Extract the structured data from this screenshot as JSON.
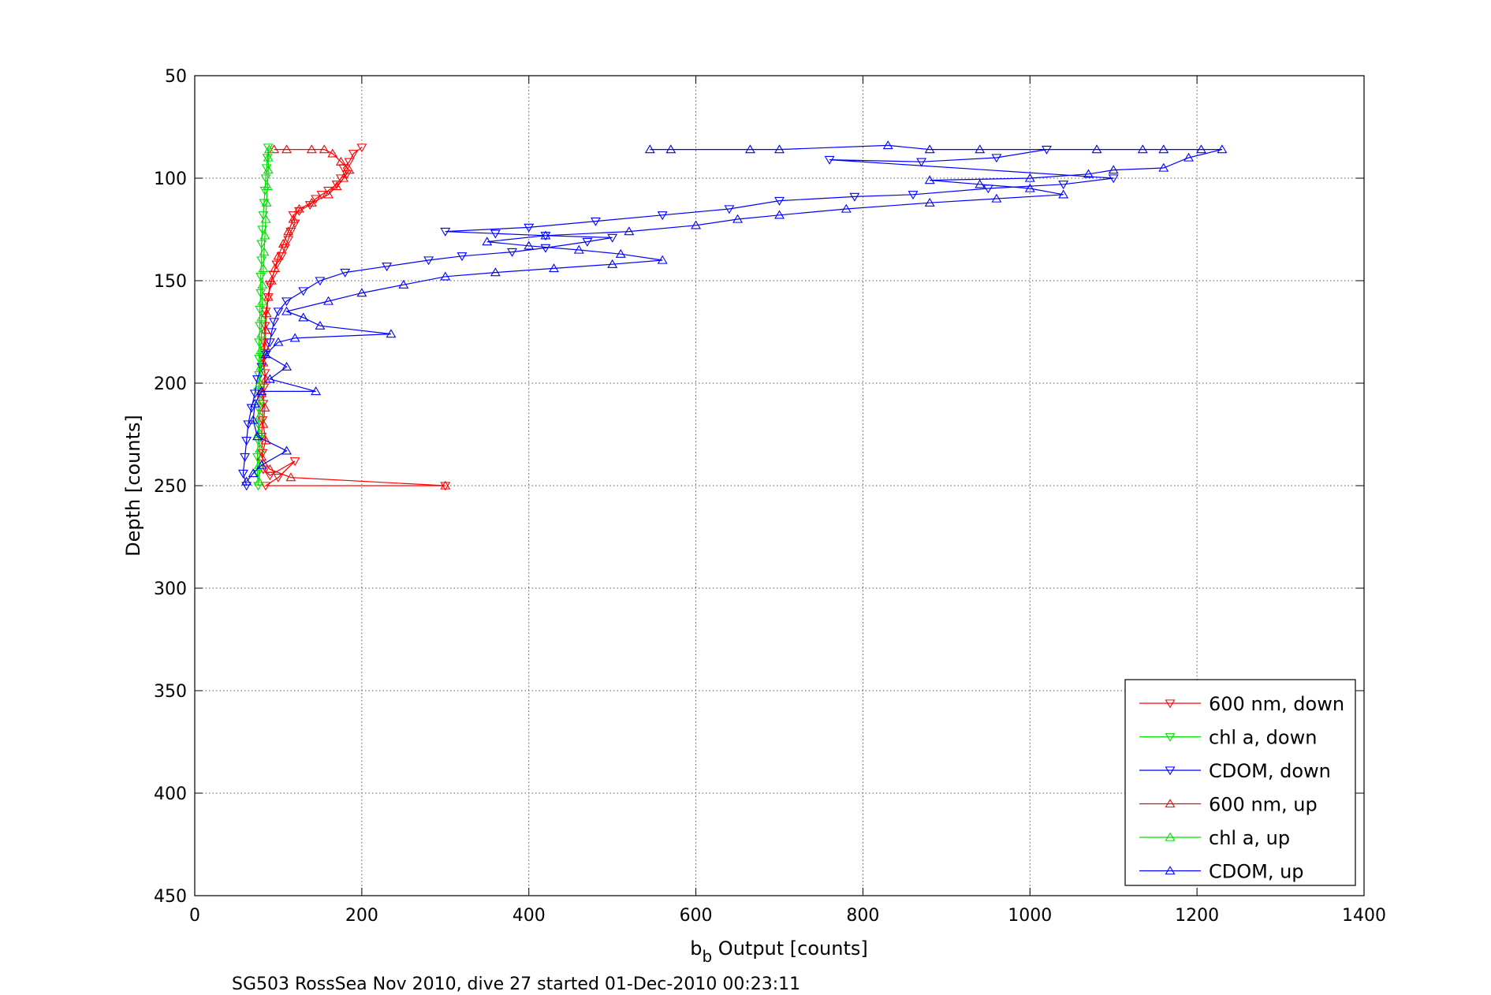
{
  "chart_data": {
    "type": "line",
    "xlabel_main": "b",
    "xlabel_sub": "b",
    "xlabel_rest": " Output [counts]",
    "ylabel": "Depth [counts]",
    "caption": "SG503 RossSea Nov 2010, dive 27 started 01-Dec-2010 00:23:11",
    "xlim": [
      0,
      1400
    ],
    "ylim": [
      50,
      450
    ],
    "y_reversed": true,
    "grid": true,
    "legend_position": "bottom-right",
    "x_ticks": [
      "0",
      "200",
      "400",
      "600",
      "800",
      "1000",
      "1200",
      "1400"
    ],
    "y_ticks": [
      "50",
      "100",
      "150",
      "200",
      "250",
      "300",
      "350",
      "400",
      "450"
    ],
    "series": [
      {
        "name": "600 nm, down",
        "color": "#ff0000",
        "marker": "triangle-down",
        "points": [
          [
            200,
            85
          ],
          [
            190,
            88
          ],
          [
            185,
            92
          ],
          [
            178,
            95
          ],
          [
            182,
            98
          ],
          [
            175,
            100
          ],
          [
            170,
            103
          ],
          [
            160,
            106
          ],
          [
            152,
            108
          ],
          [
            145,
            110
          ],
          [
            138,
            113
          ],
          [
            125,
            116
          ],
          [
            118,
            118
          ],
          [
            120,
            122
          ],
          [
            115,
            126
          ],
          [
            112,
            130
          ],
          [
            108,
            134
          ],
          [
            104,
            138
          ],
          [
            98,
            142
          ],
          [
            94,
            147
          ],
          [
            90,
            152
          ],
          [
            88,
            158
          ],
          [
            85,
            165
          ],
          [
            84,
            172
          ],
          [
            83,
            180
          ],
          [
            82,
            188
          ],
          [
            84,
            195
          ],
          [
            83,
            202
          ],
          [
            82,
            210
          ],
          [
            81,
            218
          ],
          [
            80,
            226
          ],
          [
            81,
            234
          ],
          [
            82,
            242
          ],
          [
            90,
            245
          ],
          [
            120,
            238
          ],
          [
            100,
            246
          ],
          [
            85,
            250
          ],
          [
            300,
            250
          ]
        ]
      },
      {
        "name": "chl a, down",
        "color": "#00dd00",
        "marker": "triangle-down",
        "points": [
          [
            88,
            85
          ],
          [
            87,
            90
          ],
          [
            86,
            95
          ],
          [
            85,
            100
          ],
          [
            84,
            106
          ],
          [
            83,
            112
          ],
          [
            82,
            118
          ],
          [
            81,
            125
          ],
          [
            80,
            132
          ],
          [
            80,
            140
          ],
          [
            79,
            148
          ],
          [
            79,
            156
          ],
          [
            78,
            164
          ],
          [
            78,
            172
          ],
          [
            77,
            180
          ],
          [
            77,
            188
          ],
          [
            77,
            196
          ],
          [
            76,
            204
          ],
          [
            76,
            212
          ],
          [
            76,
            220
          ],
          [
            76,
            228
          ],
          [
            75,
            236
          ],
          [
            75,
            244
          ],
          [
            76,
            250
          ]
        ]
      },
      {
        "name": "CDOM, down",
        "color": "#0000ff",
        "marker": "triangle-down",
        "points": [
          [
            1020,
            86
          ],
          [
            960,
            90
          ],
          [
            870,
            92
          ],
          [
            760,
            91
          ],
          [
            1100,
            100
          ],
          [
            1040,
            103
          ],
          [
            950,
            105
          ],
          [
            860,
            108
          ],
          [
            790,
            109
          ],
          [
            700,
            111
          ],
          [
            640,
            115
          ],
          [
            560,
            118
          ],
          [
            480,
            121
          ],
          [
            400,
            124
          ],
          [
            300,
            126
          ],
          [
            360,
            127
          ],
          [
            420,
            128
          ],
          [
            500,
            129
          ],
          [
            470,
            131
          ],
          [
            420,
            134
          ],
          [
            380,
            136
          ],
          [
            320,
            138
          ],
          [
            280,
            140
          ],
          [
            230,
            143
          ],
          [
            180,
            146
          ],
          [
            150,
            150
          ],
          [
            130,
            155
          ],
          [
            110,
            160
          ],
          [
            100,
            165
          ],
          [
            95,
            170
          ],
          [
            92,
            175
          ],
          [
            90,
            180
          ],
          [
            85,
            186
          ],
          [
            80,
            192
          ],
          [
            75,
            198
          ],
          [
            72,
            205
          ],
          [
            68,
            212
          ],
          [
            64,
            220
          ],
          [
            62,
            228
          ],
          [
            60,
            236
          ],
          [
            58,
            244
          ],
          [
            62,
            250
          ]
        ]
      },
      {
        "name": "600 nm, up",
        "color": "#ff0000",
        "marker": "triangle-up",
        "points": [
          [
            300,
            250
          ],
          [
            115,
            246
          ],
          [
            90,
            242
          ],
          [
            80,
            236
          ],
          [
            85,
            228
          ],
          [
            82,
            220
          ],
          [
            84,
            212
          ],
          [
            80,
            205
          ],
          [
            85,
            198
          ],
          [
            82,
            190
          ],
          [
            84,
            182
          ],
          [
            85,
            174
          ],
          [
            86,
            166
          ],
          [
            88,
            158
          ],
          [
            92,
            150
          ],
          [
            96,
            144
          ],
          [
            100,
            138
          ],
          [
            106,
            132
          ],
          [
            112,
            126
          ],
          [
            118,
            120
          ],
          [
            125,
            115
          ],
          [
            140,
            112
          ],
          [
            160,
            108
          ],
          [
            170,
            104
          ],
          [
            178,
            100
          ],
          [
            185,
            96
          ],
          [
            175,
            92
          ],
          [
            165,
            88
          ],
          [
            155,
            86
          ],
          [
            140,
            86
          ],
          [
            110,
            86
          ],
          [
            95,
            86
          ]
        ]
      },
      {
        "name": "chl a, up",
        "color": "#00dd00",
        "marker": "triangle-up",
        "points": [
          [
            77,
            248
          ],
          [
            77,
            240
          ],
          [
            78,
            232
          ],
          [
            77,
            224
          ],
          [
            78,
            216
          ],
          [
            78,
            208
          ],
          [
            78,
            200
          ],
          [
            79,
            192
          ],
          [
            79,
            184
          ],
          [
            80,
            176
          ],
          [
            80,
            168
          ],
          [
            81,
            160
          ],
          [
            81,
            152
          ],
          [
            82,
            144
          ],
          [
            83,
            136
          ],
          [
            84,
            128
          ],
          [
            85,
            120
          ],
          [
            86,
            112
          ],
          [
            87,
            104
          ],
          [
            88,
            96
          ],
          [
            88,
            90
          ],
          [
            89,
            86
          ]
        ]
      },
      {
        "name": "CDOM, up",
        "color": "#0000ff",
        "marker": "triangle-up",
        "points": [
          [
            62,
            248
          ],
          [
            70,
            244
          ],
          [
            80,
            240
          ],
          [
            110,
            233
          ],
          [
            75,
            226
          ],
          [
            70,
            218
          ],
          [
            72,
            210
          ],
          [
            80,
            204
          ],
          [
            145,
            204
          ],
          [
            90,
            198
          ],
          [
            110,
            192
          ],
          [
            85,
            186
          ],
          [
            100,
            180
          ],
          [
            120,
            178
          ],
          [
            235,
            176
          ],
          [
            150,
            172
          ],
          [
            130,
            168
          ],
          [
            110,
            165
          ],
          [
            160,
            160
          ],
          [
            200,
            156
          ],
          [
            250,
            152
          ],
          [
            300,
            148
          ],
          [
            360,
            146
          ],
          [
            430,
            144
          ],
          [
            500,
            142
          ],
          [
            560,
            140
          ],
          [
            510,
            137
          ],
          [
            460,
            135
          ],
          [
            400,
            133
          ],
          [
            350,
            131
          ],
          [
            420,
            128
          ],
          [
            520,
            126
          ],
          [
            600,
            123
          ],
          [
            650,
            120
          ],
          [
            700,
            118
          ],
          [
            780,
            115
          ],
          [
            880,
            112
          ],
          [
            960,
            110
          ],
          [
            1040,
            108
          ],
          [
            1000,
            105
          ],
          [
            940,
            103
          ],
          [
            880,
            101
          ],
          [
            1000,
            100
          ],
          [
            1070,
            98
          ],
          [
            1100,
            96
          ],
          [
            1160,
            95
          ],
          [
            1190,
            90
          ],
          [
            1230,
            86
          ],
          [
            1205,
            86
          ],
          [
            1160,
            86
          ],
          [
            1135,
            86
          ],
          [
            1080,
            86
          ],
          [
            940,
            86
          ],
          [
            880,
            86
          ],
          [
            830,
            84
          ],
          [
            700,
            86
          ],
          [
            665,
            86
          ],
          [
            570,
            86
          ],
          [
            545,
            86
          ]
        ]
      }
    ]
  }
}
